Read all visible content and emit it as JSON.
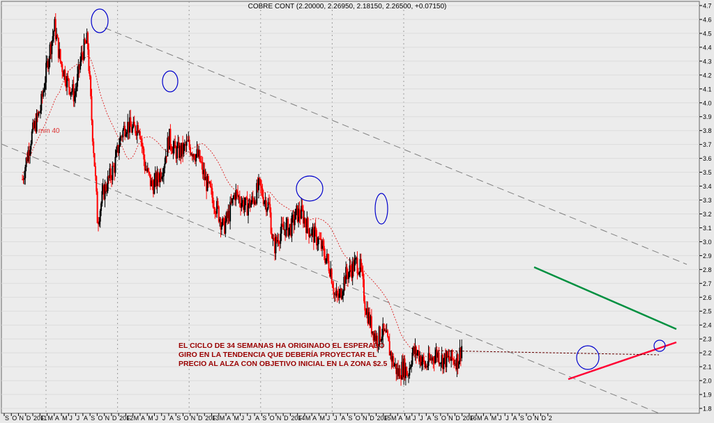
{
  "chart_data": {
    "type": "candlestick",
    "title": "COBRE CONT (2.20000, 2.26950, 2.18150, 2.26500, +0.07150)",
    "ylim": [
      1.75,
      4.75
    ],
    "y_ticks": [
      "4.7",
      "4.6",
      "4.5",
      "4.4",
      "4.3",
      "4.2",
      "4.1",
      "4.0",
      "3.9",
      "3.8",
      "3.7",
      "3.6",
      "3.5",
      "3.4",
      "3.3",
      "3.2",
      "3.1",
      "3.0",
      "2.9",
      "2.8",
      "2.7",
      "2.6",
      "2.5",
      "2.4",
      "2.3",
      "2.2",
      "2.1",
      "2.0",
      "1.9",
      "1.8"
    ],
    "x_ticks": [
      "S",
      "O",
      "N",
      "D",
      "2011",
      "F",
      "M",
      "A",
      "M",
      "J",
      "J",
      "A",
      "S",
      "O",
      "N",
      "D",
      "2012",
      "F",
      "M",
      "A",
      "M",
      "J",
      "J",
      "A",
      "S",
      "O",
      "N",
      "D",
      "2013",
      "F",
      "M",
      "A",
      "M",
      "J",
      "J",
      "A",
      "S",
      "O",
      "N",
      "D",
      "2014",
      "F",
      "M",
      "A",
      "M",
      "J",
      "J",
      "A",
      "S",
      "O",
      "N",
      "D",
      "2015",
      "F",
      "M",
      "A",
      "M",
      "J",
      "J",
      "A",
      "S",
      "O",
      "N",
      "D",
      "2016",
      "F",
      "M",
      "A",
      "M",
      "J",
      "J",
      "A",
      "S",
      "O",
      "N",
      "D",
      "2"
    ],
    "price_path": [
      [
        2010.67,
        3.45
      ],
      [
        2010.79,
        3.75
      ],
      [
        2010.92,
        3.95
      ],
      [
        2011.04,
        4.35
      ],
      [
        2011.12,
        4.55
      ],
      [
        2011.2,
        4.3
      ],
      [
        2011.3,
        4.15
      ],
      [
        2011.4,
        4.05
      ],
      [
        2011.5,
        4.35
      ],
      [
        2011.58,
        4.45
      ],
      [
        2011.63,
        3.95
      ],
      [
        2011.68,
        3.55
      ],
      [
        2011.72,
        3.15
      ],
      [
        2011.8,
        3.35
      ],
      [
        2011.88,
        3.45
      ],
      [
        2011.96,
        3.55
      ],
      [
        2012.04,
        3.75
      ],
      [
        2012.12,
        3.85
      ],
      [
        2012.22,
        3.8
      ],
      [
        2012.3,
        3.85
      ],
      [
        2012.38,
        3.55
      ],
      [
        2012.48,
        3.4
      ],
      [
        2012.56,
        3.45
      ],
      [
        2012.64,
        3.55
      ],
      [
        2012.72,
        3.75
      ],
      [
        2012.8,
        3.65
      ],
      [
        2012.9,
        3.65
      ],
      [
        2012.98,
        3.7
      ],
      [
        2013.06,
        3.65
      ],
      [
        2013.14,
        3.6
      ],
      [
        2013.22,
        3.45
      ],
      [
        2013.3,
        3.35
      ],
      [
        2013.38,
        3.25
      ],
      [
        2013.48,
        3.1
      ],
      [
        2013.56,
        3.2
      ],
      [
        2013.64,
        3.35
      ],
      [
        2013.72,
        3.3
      ],
      [
        2013.8,
        3.25
      ],
      [
        2013.9,
        3.3
      ],
      [
        2013.98,
        3.4
      ],
      [
        2014.06,
        3.3
      ],
      [
        2014.12,
        3.25
      ],
      [
        2014.18,
        2.95
      ],
      [
        2014.26,
        3.05
      ],
      [
        2014.34,
        3.1
      ],
      [
        2014.42,
        3.1
      ],
      [
        2014.5,
        3.2
      ],
      [
        2014.58,
        3.2
      ],
      [
        2014.66,
        3.1
      ],
      [
        2014.74,
        3.05
      ],
      [
        2014.82,
        3.0
      ],
      [
        2014.9,
        2.9
      ],
      [
        2014.98,
        2.8
      ],
      [
        2015.04,
        2.6
      ],
      [
        2015.1,
        2.6
      ],
      [
        2015.18,
        2.75
      ],
      [
        2015.26,
        2.8
      ],
      [
        2015.34,
        2.85
      ],
      [
        2015.4,
        2.8
      ],
      [
        2015.46,
        2.55
      ],
      [
        2015.54,
        2.4
      ],
      [
        2015.62,
        2.3
      ],
      [
        2015.7,
        2.35
      ],
      [
        2015.76,
        2.3
      ],
      [
        2015.84,
        2.15
      ],
      [
        2015.92,
        2.05
      ],
      [
        2016.0,
        2.1
      ],
      [
        2016.06,
        2.05
      ],
      [
        2016.12,
        2.2
      ],
      [
        2016.2,
        2.2
      ],
      [
        2016.3,
        2.1
      ],
      [
        2016.38,
        2.15
      ],
      [
        2016.46,
        2.2
      ],
      [
        2016.54,
        2.15
      ],
      [
        2016.62,
        2.15
      ],
      [
        2016.7,
        2.15
      ],
      [
        2016.76,
        2.15
      ],
      [
        2016.82,
        2.27
      ]
    ],
    "moving_average": {
      "label": "mm 40",
      "color": "#dd3333"
    },
    "annotation": [
      "EL CICLO DE 34 SEMANAS HA ORIGINADO EL ESPERADO",
      "GIRO EN LA TENDENCIA QUE DEBERÍA PROYECTAR EL",
      "PRECIO AL ALZA CON OBJETIVO INICIAL EN LA ZONA $2.5"
    ],
    "colors": {
      "up": "#000000",
      "down": "#ff0000",
      "resistance": "#009040",
      "support": "#ff0033",
      "circle": "#0000cc",
      "annotation": "#990000",
      "channel": "#808080"
    }
  }
}
